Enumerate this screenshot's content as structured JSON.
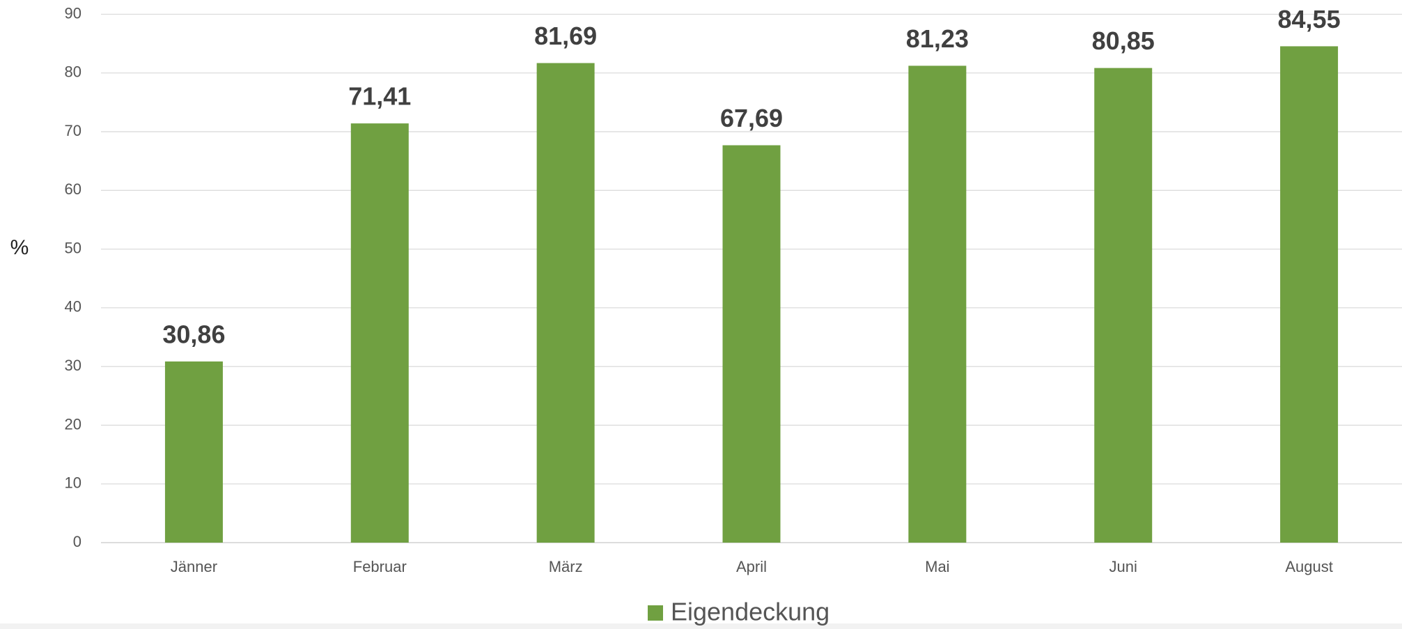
{
  "chart_data": {
    "type": "bar",
    "y_label": "%",
    "categories": [
      "Jänner",
      "Februar",
      "März",
      "April",
      "Mai",
      "Juni",
      "August"
    ],
    "series": [
      {
        "name": "Eigendeckung",
        "color": "#70a041",
        "values": [
          30.86,
          71.41,
          81.69,
          67.69,
          81.23,
          80.85,
          84.55
        ],
        "value_labels": [
          "30,86",
          "71,41",
          "81,69",
          "67,69",
          "81,23",
          "80,85",
          "84,55"
        ]
      }
    ],
    "ylim": [
      0,
      90
    ],
    "yticks": [
      0,
      10,
      20,
      30,
      40,
      50,
      60,
      70,
      80,
      90
    ],
    "grid": true,
    "legend": "bottom"
  }
}
